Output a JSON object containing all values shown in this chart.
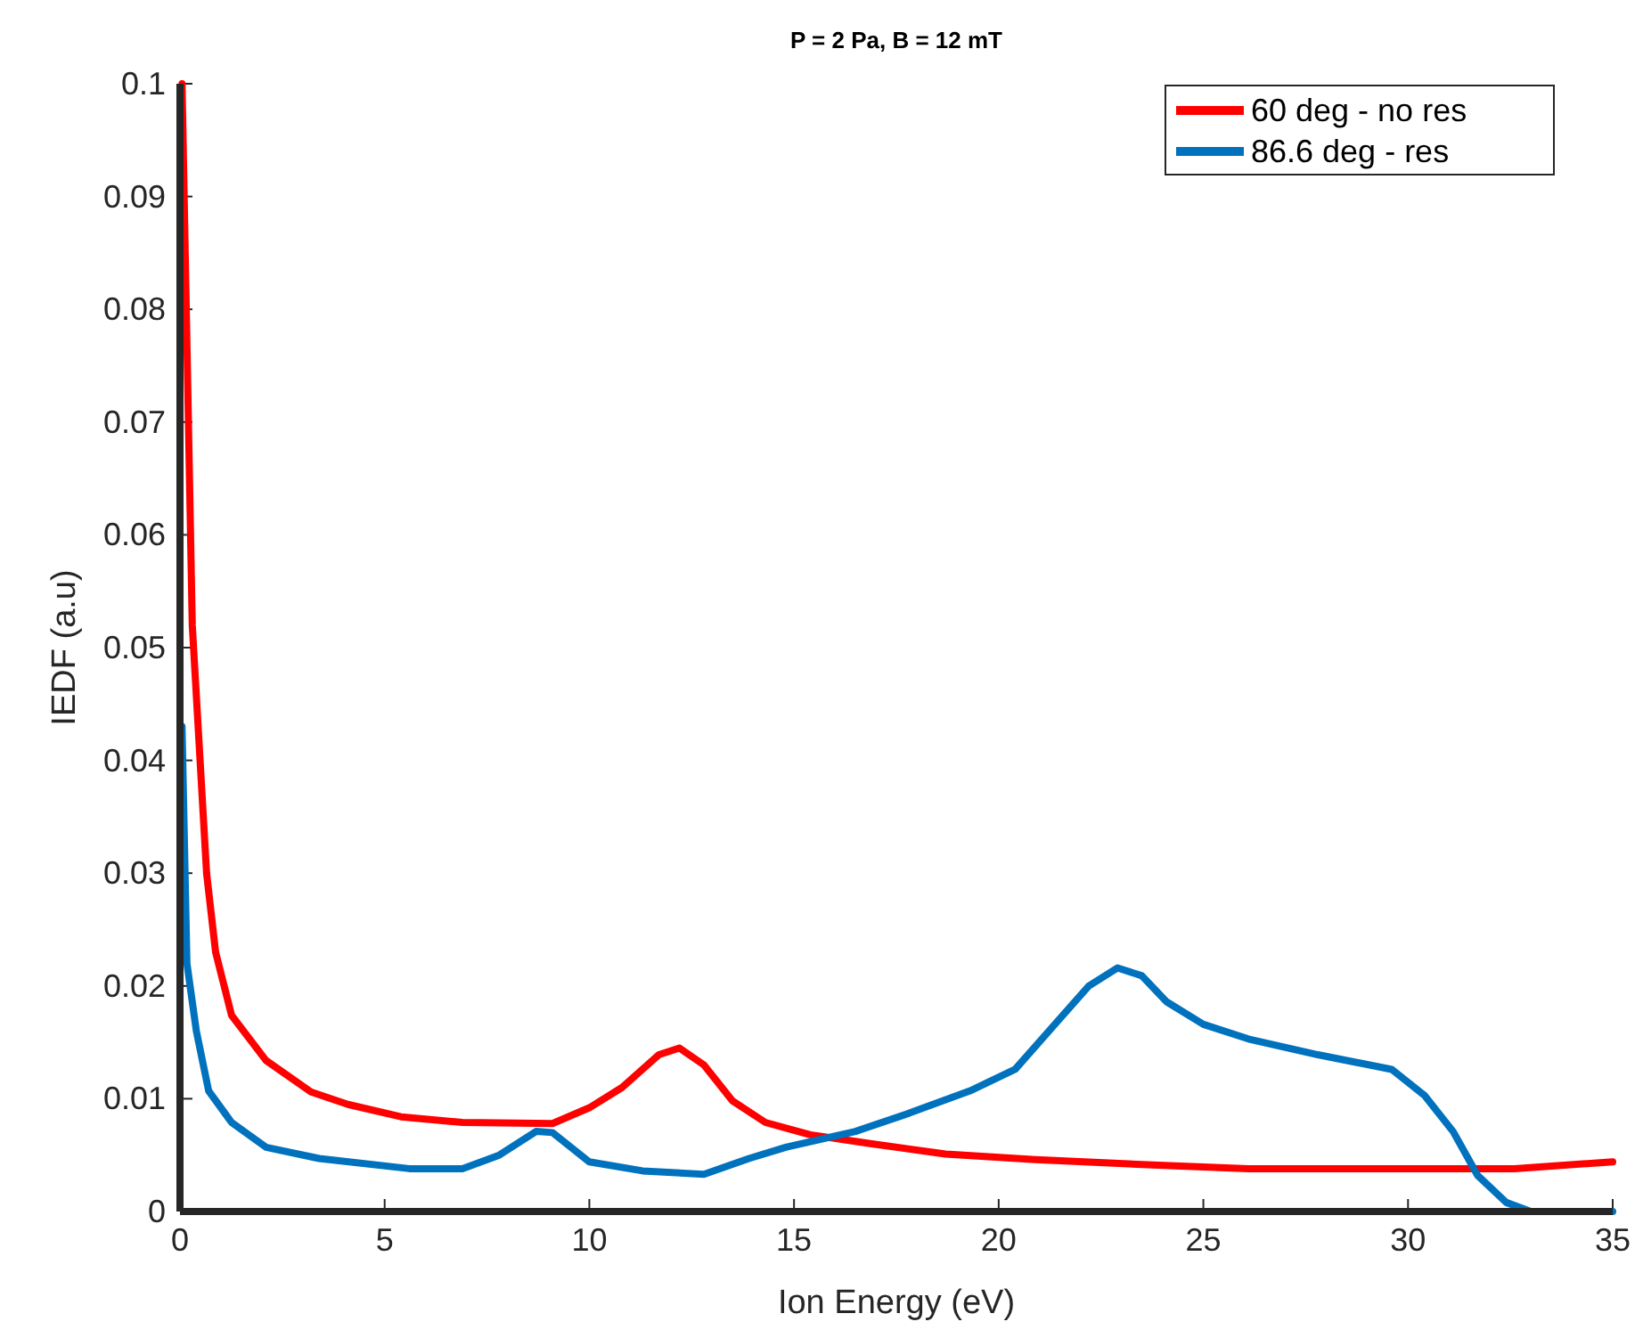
{
  "chart_data": {
    "type": "line",
    "title": "P = 2 Pa, B = 12 mT",
    "xlabel": "Ion Energy (eV)",
    "ylabel": "IEDF (a.u)",
    "xlim": [
      0,
      35
    ],
    "xticks": [
      0,
      5,
      10,
      15,
      20,
      25,
      30,
      35
    ],
    "ylim": [
      0,
      0.1
    ],
    "yticks": [
      0,
      0.01,
      0.02,
      0.03,
      0.04,
      0.05,
      0.06,
      0.07,
      0.08,
      0.09,
      0.1
    ],
    "grid": false,
    "legend": "top right",
    "marker": "none",
    "line_style": "solid",
    "series": [
      {
        "name": "60 deg - no res",
        "color": "#ff0000",
        "x": [
          0.05,
          0.3,
          0.65,
          0.87,
          1.26,
          2.1,
          3.2,
          4.1,
          5.4,
          6.9,
          9.1,
          10,
          10.8,
          11.7,
          12.2,
          12.8,
          13.5,
          14.3,
          15.4,
          16.9,
          18.7,
          20.9,
          23.9,
          26.1,
          29.6,
          32.6,
          35
        ],
        "values": [
          0.1,
          0.052,
          0.03,
          0.023,
          0.0174,
          0.0134,
          0.0106,
          0.0095,
          0.0084,
          0.0079,
          0.0078,
          0.0092,
          0.011,
          0.0139,
          0.0145,
          0.013,
          0.0098,
          0.0079,
          0.0068,
          0.006,
          0.0051,
          0.0046,
          0.0041,
          0.0038,
          0.0038,
          0.0038,
          0.0044
        ]
      },
      {
        "name": "86.6 deg - res",
        "color": "#0072bd",
        "x": [
          0.05,
          0.17,
          0.4,
          0.7,
          1.26,
          2.1,
          3.4,
          5.6,
          6.9,
          7.8,
          8.7,
          9.1,
          10,
          11.3,
          12.8,
          13.9,
          14.8,
          16.5,
          17.8,
          19.3,
          20.4,
          21.3,
          22.2,
          22.9,
          23.5,
          24.1,
          25,
          26.1,
          27.8,
          29.6,
          30.4,
          31.1,
          31.7,
          32.4,
          33,
          35
        ],
        "values": [
          0.043,
          0.022,
          0.016,
          0.0107,
          0.0079,
          0.0057,
          0.0047,
          0.0038,
          0.0038,
          0.005,
          0.0071,
          0.007,
          0.0044,
          0.0036,
          0.0033,
          0.0047,
          0.0057,
          0.0071,
          0.0087,
          0.0107,
          0.0126,
          0.0163,
          0.02,
          0.0216,
          0.0209,
          0.0186,
          0.0166,
          0.0153,
          0.0139,
          0.0126,
          0.0103,
          0.0071,
          0.0032,
          0.0008,
          0,
          0
        ]
      }
    ]
  }
}
